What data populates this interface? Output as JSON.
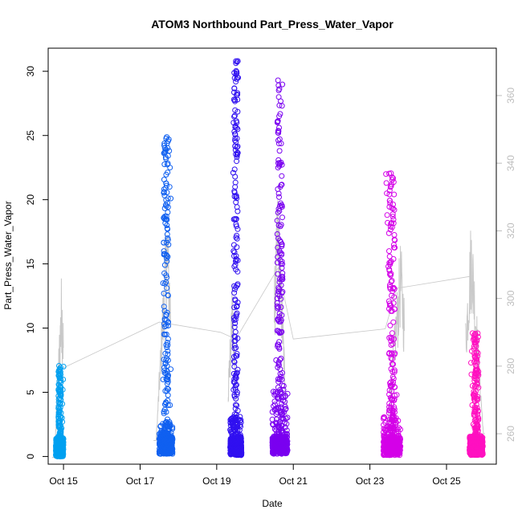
{
  "chart_data": {
    "type": "scatter",
    "title": "ATOM3 Northbound Part_Press_Water_Vapor",
    "xlabel": "Date",
    "ylabel": "Part_Press_Water_Vapor",
    "x_unit": "days in October (day 15 = Oct 15)",
    "xlim": [
      14.6,
      26.3
    ],
    "ylim": [
      -0.6,
      31.8
    ],
    "y2lim": [
      251,
      374
    ],
    "x_ticks": [
      {
        "value": 15,
        "label": "Oct 15"
      },
      {
        "value": 17,
        "label": "Oct 17"
      },
      {
        "value": 19,
        "label": "Oct 19"
      },
      {
        "value": 21,
        "label": "Oct 21"
      },
      {
        "value": 23,
        "label": "Oct 23"
      },
      {
        "value": 25,
        "label": "Oct 25"
      }
    ],
    "y_ticks": [
      0,
      5,
      10,
      15,
      20,
      25,
      30
    ],
    "y2_ticks": [
      260,
      280,
      300,
      320,
      340,
      360
    ],
    "grid": false,
    "series": [
      {
        "color": "#00a0f0",
        "x_range": [
          14.8,
          15.0
        ],
        "y_low": 0.0,
        "y_mid": 1.5,
        "y_max": 7.1,
        "sparse_points": [
          [
            14.95,
            2.2
          ],
          [
            14.96,
            3.0
          ],
          [
            14.97,
            4.1
          ],
          [
            14.98,
            5.2
          ],
          [
            14.99,
            6.0
          ],
          [
            15.0,
            7.0
          ],
          [
            14.9,
            1.7
          ],
          [
            14.97,
            2.7
          ]
        ]
      },
      {
        "color": "#1060f0",
        "x_range": [
          17.5,
          17.85
        ],
        "y_low": 0.2,
        "y_mid": 2.5,
        "y_max": 24.7,
        "sparse_points": [
          [
            17.75,
            24.7
          ],
          [
            17.76,
            23.8
          ],
          [
            17.78,
            22.5
          ],
          [
            17.77,
            21.0
          ],
          [
            17.8,
            20.1
          ],
          [
            17.7,
            18.0
          ],
          [
            17.72,
            17.0
          ],
          [
            17.6,
            13.5
          ],
          [
            17.62,
            12.7
          ],
          [
            17.68,
            11.0
          ],
          [
            17.65,
            9.5
          ],
          [
            17.7,
            8.5
          ],
          [
            17.66,
            7.2
          ],
          [
            17.8,
            6.8
          ],
          [
            17.6,
            6.0
          ],
          [
            17.7,
            5.1
          ],
          [
            17.78,
            4.0
          ],
          [
            17.62,
            3.5
          ],
          [
            17.7,
            15.2
          ],
          [
            17.74,
            16.5
          ]
        ]
      },
      {
        "color": "#3010f0",
        "x_range": [
          19.35,
          19.65
        ],
        "y_low": 0.1,
        "y_mid": 3.0,
        "y_max": 30.8,
        "sparse_points": [
          [
            19.55,
            30.8
          ],
          [
            19.56,
            29.5
          ],
          [
            19.54,
            28.2
          ],
          [
            19.45,
            27.8
          ],
          [
            19.44,
            26.0
          ],
          [
            19.46,
            25.3
          ],
          [
            19.5,
            24.5
          ],
          [
            19.52,
            23.0
          ],
          [
            19.43,
            22.1
          ],
          [
            19.48,
            21.0
          ],
          [
            19.5,
            19.8
          ],
          [
            19.47,
            18.5
          ],
          [
            19.52,
            17.2
          ],
          [
            19.44,
            16.0
          ],
          [
            19.46,
            14.8
          ],
          [
            19.5,
            13.2
          ],
          [
            19.55,
            12.0
          ],
          [
            19.45,
            10.8
          ],
          [
            19.48,
            9.3
          ],
          [
            19.53,
            8.0
          ],
          [
            19.46,
            7.0
          ],
          [
            19.51,
            6.1
          ],
          [
            19.44,
            5.2
          ],
          [
            19.5,
            4.5
          ]
        ]
      },
      {
        "color": "#7a00f0",
        "x_range": [
          20.45,
          20.85
        ],
        "y_low": 0.2,
        "y_mid": 5.0,
        "y_max": 29.3,
        "sparse_points": [
          [
            20.6,
            29.3
          ],
          [
            20.62,
            28.0
          ],
          [
            20.63,
            26.5
          ],
          [
            20.61,
            25.2
          ],
          [
            20.64,
            23.8
          ],
          [
            20.6,
            22.5
          ],
          [
            20.66,
            21.0
          ],
          [
            20.65,
            19.5
          ],
          [
            20.62,
            18.0
          ],
          [
            20.7,
            16.5
          ],
          [
            20.68,
            15.0
          ],
          [
            20.72,
            13.8
          ],
          [
            20.64,
            12.5
          ],
          [
            20.7,
            11.0
          ],
          [
            20.58,
            9.8
          ],
          [
            20.63,
            8.5
          ],
          [
            20.55,
            7.5
          ],
          [
            20.7,
            6.0
          ],
          [
            20.75,
            5.5
          ],
          [
            20.6,
            4.5
          ]
        ]
      },
      {
        "color": "#d400e8",
        "x_range": [
          23.35,
          23.8
        ],
        "y_low": 0.1,
        "y_mid": 3.0,
        "y_max": 22.0,
        "sparse_points": [
          [
            23.42,
            22.0
          ],
          [
            23.43,
            21.3
          ],
          [
            23.44,
            20.5
          ],
          [
            23.45,
            18.8
          ],
          [
            23.46,
            18.2
          ],
          [
            23.5,
            16.0
          ],
          [
            23.48,
            14.8
          ],
          [
            23.52,
            13.2
          ],
          [
            23.5,
            11.5
          ],
          [
            23.53,
            10.2
          ],
          [
            23.55,
            9.0
          ],
          [
            23.5,
            8.0
          ],
          [
            23.58,
            7.2
          ],
          [
            23.6,
            6.2
          ],
          [
            23.65,
            5.4
          ],
          [
            23.7,
            4.8
          ],
          [
            23.55,
            3.8
          ]
        ]
      },
      {
        "color": "#ff10c0",
        "x_range": [
          25.6,
          25.95
        ],
        "y_low": 0.1,
        "y_mid": 1.5,
        "y_max": 9.6,
        "sparse_points": [
          [
            25.68,
            9.6
          ],
          [
            25.7,
            9.1
          ],
          [
            25.66,
            8.2
          ],
          [
            25.64,
            7.3
          ],
          [
            25.65,
            6.4
          ],
          [
            25.68,
            5.5
          ],
          [
            25.7,
            4.8
          ],
          [
            25.67,
            4.0
          ],
          [
            25.72,
            3.2
          ],
          [
            25.7,
            2.5
          ]
        ]
      }
    ],
    "secondary_trace": {
      "color": "#c8c8c8",
      "axis": "right",
      "connector": [
        [
          15.0,
          279.5
        ],
        [
          17.5,
          293
        ],
        [
          19.1,
          290
        ],
        [
          19.5,
          288
        ],
        [
          20.6,
          309
        ],
        [
          21.0,
          288
        ],
        [
          23.4,
          291
        ],
        [
          23.7,
          303
        ],
        [
          25.6,
          306.5
        ]
      ],
      "bursts": [
        {
          "x_range": [
            14.7,
            15.0
          ],
          "y_base": 253,
          "y_peak": 309,
          "peak_x": 14.95
        },
        {
          "x_range": [
            17.35,
            17.8
          ],
          "y_base": 258,
          "y_peak": 330,
          "peak_x": 17.7
        },
        {
          "x_range": [
            19.3,
            19.55
          ],
          "y_base": 258,
          "y_peak": 306,
          "peak_x": 19.4
        },
        {
          "x_range": [
            20.5,
            20.9
          ],
          "y_base": 260,
          "y_peak": 335,
          "peak_x": 20.6
        },
        {
          "x_range": [
            23.3,
            23.9
          ],
          "y_base": 258,
          "y_peak": 318,
          "peak_x": 23.8
        },
        {
          "x_range": [
            25.5,
            26.0
          ],
          "y_base": 260,
          "y_peak": 327,
          "peak_x": 25.65
        }
      ]
    }
  }
}
